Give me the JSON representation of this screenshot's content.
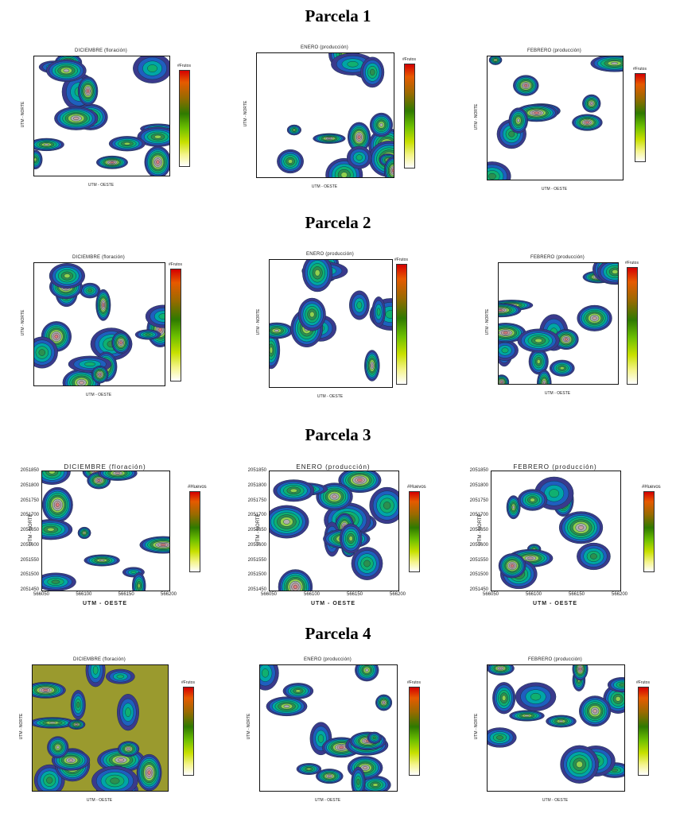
{
  "sections": [
    {
      "title": "Parcela 1",
      "panels": [
        {
          "title": "DICIEMBRE (floración)",
          "ylabel": "UTM - NORTE",
          "xlabel": "UTM - OESTE",
          "legend_title": "#Frutos",
          "colorbar_ticks": [],
          "bg": "#ffffff",
          "blobs": []
        },
        {
          "title": "ENERO (producción)",
          "ylabel": "UTM - NORTE",
          "xlabel": "UTM - OESTE",
          "legend_title": "#Frutos",
          "colorbar_ticks": [],
          "bg": "#ffffff",
          "blobs": []
        },
        {
          "title": "FEBRERO (producción)",
          "ylabel": "UTM - NORTE",
          "xlabel": "UTM - OESTE",
          "legend_title": "#Frutos",
          "colorbar_ticks": [],
          "bg": "#ffffff",
          "blobs": []
        }
      ]
    },
    {
      "title": "Parcela 2",
      "panels": [
        {
          "title": "DICIEMBRE (floración)",
          "ylabel": "UTM - NORTE",
          "xlabel": "UTM - OESTE",
          "legend_title": "#Frutos",
          "colorbar_ticks": [],
          "bg": "#ffffff",
          "blobs": []
        },
        {
          "title": "ENERO (producción)",
          "ylabel": "UTM - NORTE",
          "xlabel": "UTM - OESTE",
          "legend_title": "#Frutos",
          "colorbar_ticks": [],
          "bg": "#ffffff",
          "blobs": []
        },
        {
          "title": "FEBRERO (producción)",
          "ylabel": "UTM - NORTE",
          "xlabel": "UTM - OESTE",
          "legend_title": "#Frutos",
          "colorbar_ticks": [],
          "bg": "#ffffff",
          "blobs": []
        }
      ]
    },
    {
      "title": "Parcela 3",
      "panels": [
        {
          "title": "DICIEMBRE (floración)",
          "ylabel": "UTM - NORTE",
          "xlabel": "UTM - OESTE",
          "legend_title": "#Huevos",
          "yticks": [
            "2051850",
            "2051800",
            "2051750",
            "2051700",
            "2051650",
            "2051600",
            "2051550",
            "2051500",
            "2051450"
          ],
          "xticks": [
            "566050",
            "566100",
            "566150",
            "566200"
          ],
          "colorbar_ticks": [],
          "bg": "#ffffff",
          "blobs": []
        },
        {
          "title": "ENERO (producción)",
          "ylabel": "UTM - NORTE",
          "xlabel": "UTM - OESTE",
          "legend_title": "#Huevos",
          "yticks": [
            "2051850",
            "2051800",
            "2051750",
            "2051700",
            "2051650",
            "2051600",
            "2051550",
            "2051500",
            "2051450"
          ],
          "xticks": [
            "566050",
            "566100",
            "566150",
            "566200"
          ],
          "colorbar_ticks": [],
          "bg": "#ffffff",
          "blobs": []
        },
        {
          "title": "FEBRERO (producción)",
          "ylabel": "UTM - NORTE",
          "xlabel": "UTM - OESTE",
          "legend_title": "#Huevos",
          "yticks": [
            "2051850",
            "2051800",
            "2051750",
            "2051700",
            "2051650",
            "2051600",
            "2051550",
            "2051500",
            "2051450"
          ],
          "xticks": [
            "566050",
            "566100",
            "566150",
            "566200"
          ],
          "colorbar_ticks": [],
          "bg": "#ffffff",
          "blobs": []
        }
      ]
    },
    {
      "title": "Parcela 4",
      "panels": [
        {
          "title": "DICIEMBRE (floración)",
          "ylabel": "UTM - NORTE",
          "xlabel": "UTM - OESTE",
          "legend_title": "#Frutos",
          "colorbar_ticks": [],
          "bg": "#9a9a2e",
          "blobs": []
        },
        {
          "title": "ENERO (producción)",
          "ylabel": "UTM - NORTE",
          "xlabel": "UTM - OESTE",
          "legend_title": "#Frutos",
          "colorbar_ticks": [],
          "bg": "#ffffff",
          "blobs": []
        },
        {
          "title": "FEBRERO (producción)",
          "ylabel": "UTM - NORTE",
          "xlabel": "UTM - OESTE",
          "legend_title": "#Frutos",
          "colorbar_ticks": [],
          "bg": "#ffffff",
          "blobs": []
        }
      ]
    }
  ],
  "chart_data": [
    {
      "type": "heatmap",
      "title": "DICIEMBRE (floración)",
      "xlabel": "UTM - OESTE",
      "ylabel": "UTM - NORTE",
      "legend": "#Frutos",
      "group": "Parcela 1"
    },
    {
      "type": "heatmap",
      "title": "ENERO (producción)",
      "xlabel": "UTM - OESTE",
      "ylabel": "UTM - NORTE",
      "legend": "#Frutos",
      "group": "Parcela 1"
    },
    {
      "type": "heatmap",
      "title": "FEBRERO (producción)",
      "xlabel": "UTM - OESTE",
      "ylabel": "UTM - NORTE",
      "legend": "#Frutos",
      "group": "Parcela 1"
    },
    {
      "type": "heatmap",
      "title": "DICIEMBRE (floración)",
      "xlabel": "UTM - OESTE",
      "ylabel": "UTM - NORTE",
      "legend": "#Frutos",
      "group": "Parcela 2"
    },
    {
      "type": "heatmap",
      "title": "ENERO (producción)",
      "xlabel": "UTM - OESTE",
      "ylabel": "UTM - NORTE",
      "legend": "#Frutos",
      "group": "Parcela 2"
    },
    {
      "type": "heatmap",
      "title": "FEBRERO (producción)",
      "xlabel": "UTM - OESTE",
      "ylabel": "UTM - NORTE",
      "legend": "#Frutos",
      "group": "Parcela 2"
    },
    {
      "type": "heatmap",
      "title": "DICIEMBRE (floración)",
      "xlabel": "UTM - OESTE",
      "ylabel": "UTM - NORTE",
      "legend": "#Huevos",
      "group": "Parcela 3",
      "x_ticks": [
        566050,
        566100,
        566150,
        566200
      ],
      "y_ticks": [
        2051450,
        2051500,
        2051550,
        2051600,
        2051650,
        2051700,
        2051750,
        2051800,
        2051850
      ]
    },
    {
      "type": "heatmap",
      "title": "ENERO (producción)",
      "xlabel": "UTM - OESTE",
      "ylabel": "UTM - NORTE",
      "legend": "#Huevos",
      "group": "Parcela 3",
      "x_ticks": [
        566050,
        566100,
        566150,
        566200
      ],
      "y_ticks": [
        2051450,
        2051500,
        2051550,
        2051600,
        2051650,
        2051700,
        2051750,
        2051800,
        2051850
      ]
    },
    {
      "type": "heatmap",
      "title": "FEBRERO (producción)",
      "xlabel": "UTM - OESTE",
      "ylabel": "UTM - NORTE",
      "legend": "#Huevos",
      "group": "Parcela 3",
      "x_ticks": [
        566050,
        566100,
        566150,
        566200
      ],
      "y_ticks": [
        2051450,
        2051500,
        2051550,
        2051600,
        2051650,
        2051700,
        2051750,
        2051800,
        2051850
      ]
    },
    {
      "type": "heatmap",
      "title": "DICIEMBRE (floración)",
      "xlabel": "UTM - OESTE",
      "ylabel": "UTM - NORTE",
      "legend": "#Frutos",
      "group": "Parcela 4"
    },
    {
      "type": "heatmap",
      "title": "ENERO (producción)",
      "xlabel": "UTM - OESTE",
      "ylabel": "UTM - NORTE",
      "legend": "#Frutos",
      "group": "Parcela 4"
    },
    {
      "type": "heatmap",
      "title": "FEBRERO (producción)",
      "xlabel": "UTM - OESTE",
      "ylabel": "UTM - NORTE",
      "legend": "#Frutos",
      "group": "Parcela 4"
    }
  ]
}
